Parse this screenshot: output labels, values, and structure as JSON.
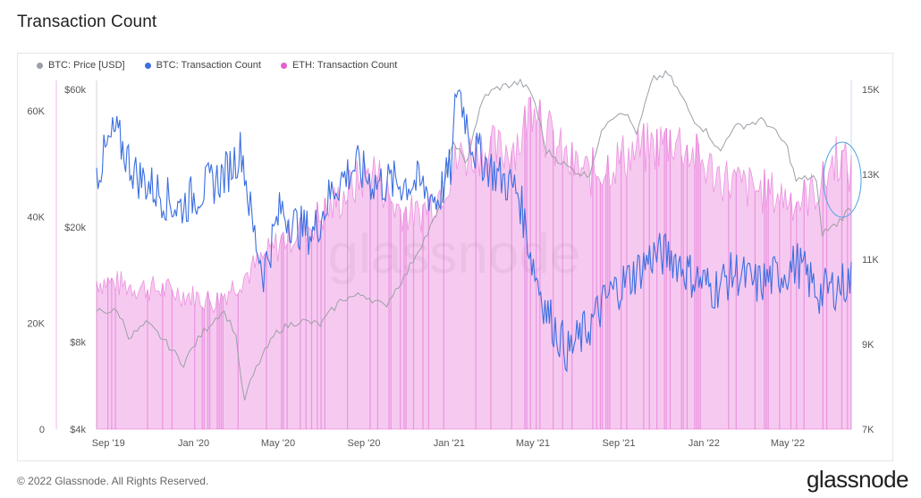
{
  "page": {
    "title": "Transaction Count",
    "copyright": "© 2022 Glassnode. All Rights Reserved.",
    "logo": "glassnode"
  },
  "legend": [
    {
      "label": "BTC: Price [USD]",
      "color": "#9aa0a6"
    },
    {
      "label": "BTC: Transaction Count",
      "color": "#3b6fe0"
    },
    {
      "label": "ETH: Transaction Count",
      "color": "#e35fd1"
    }
  ],
  "chart_data": {
    "type": "line",
    "watermark": "glassnode",
    "x_ticks": [
      "Sep '19",
      "Jan '20",
      "May '20",
      "Sep '20",
      "Jan '21",
      "May '21",
      "Sep '21",
      "Jan '22",
      "May '22"
    ],
    "x_range": [
      "2019-08-15",
      "2022-07-31"
    ],
    "axes": {
      "left_count": {
        "ticks": [
          "0",
          "20K",
          "40K",
          "60K"
        ],
        "ylim": [
          0,
          64000
        ]
      },
      "left_price": {
        "ticks": [
          "$4k",
          "$8k",
          "$20k",
          "$60k"
        ],
        "scale": "log",
        "ylim": [
          4000,
          60000
        ]
      },
      "right_count": {
        "ticks": [
          "7K",
          "9K",
          "11K",
          "13K",
          "15K"
        ],
        "ylim": [
          7000,
          15000
        ]
      }
    },
    "series": [
      {
        "name": "BTC: Price [USD]",
        "axis": "left_price",
        "color": "#9aa0a6",
        "points": [
          [
            "2019-08-15",
            10300
          ],
          [
            "2019-09-15",
            10200
          ],
          [
            "2019-10-01",
            8300
          ],
          [
            "2019-10-26",
            9300
          ],
          [
            "2019-11-20",
            8100
          ],
          [
            "2019-12-17",
            6700
          ],
          [
            "2020-01-15",
            8700
          ],
          [
            "2020-02-12",
            10300
          ],
          [
            "2020-03-01",
            8600
          ],
          [
            "2020-03-12",
            4900
          ],
          [
            "2020-04-01",
            6600
          ],
          [
            "2020-05-01",
            8800
          ],
          [
            "2020-06-01",
            9500
          ],
          [
            "2020-07-01",
            9200
          ],
          [
            "2020-08-01",
            11300
          ],
          [
            "2020-09-01",
            11700
          ],
          [
            "2020-10-01",
            10600
          ],
          [
            "2020-11-01",
            13800
          ],
          [
            "2020-12-01",
            19000
          ],
          [
            "2020-12-20",
            23500
          ],
          [
            "2021-01-08",
            40000
          ],
          [
            "2021-01-25",
            32500
          ],
          [
            "2021-02-21",
            57000
          ],
          [
            "2021-03-13",
            61000
          ],
          [
            "2021-04-14",
            63500
          ],
          [
            "2021-05-01",
            57000
          ],
          [
            "2021-05-19",
            37000
          ],
          [
            "2021-06-22",
            32000
          ],
          [
            "2021-07-20",
            30000
          ],
          [
            "2021-08-15",
            47000
          ],
          [
            "2021-09-07",
            51000
          ],
          [
            "2021-09-28",
            42000
          ],
          [
            "2021-10-20",
            65000
          ],
          [
            "2021-11-10",
            68000
          ],
          [
            "2021-12-15",
            48000
          ],
          [
            "2022-01-10",
            41500
          ],
          [
            "2022-01-24",
            36000
          ],
          [
            "2022-02-10",
            44000
          ],
          [
            "2022-03-28",
            47000
          ],
          [
            "2022-04-30",
            38000
          ],
          [
            "2022-05-12",
            29000
          ],
          [
            "2022-06-10",
            30000
          ],
          [
            "2022-06-18",
            19000
          ],
          [
            "2022-07-10",
            20500
          ],
          [
            "2022-07-31",
            23500
          ]
        ]
      },
      {
        "name": "BTC: Transaction Count",
        "axis": "right_count",
        "color": "#3b6fe0",
        "points": [
          [
            "2019-08-15",
            13000
          ],
          [
            "2019-09-10",
            14000
          ],
          [
            "2019-10-10",
            13000
          ],
          [
            "2019-11-10",
            12600
          ],
          [
            "2019-12-10",
            12200
          ],
          [
            "2020-01-10",
            12600
          ],
          [
            "2020-02-15",
            13000
          ],
          [
            "2020-03-10",
            13600
          ],
          [
            "2020-03-25",
            11800
          ],
          [
            "2020-04-10",
            10700
          ],
          [
            "2020-05-05",
            12200
          ],
          [
            "2020-05-25",
            11800
          ],
          [
            "2020-06-20",
            11600
          ],
          [
            "2020-07-20",
            12700
          ],
          [
            "2020-08-20",
            13200
          ],
          [
            "2020-09-15",
            12800
          ],
          [
            "2020-10-15",
            12800
          ],
          [
            "2020-11-15",
            12800
          ],
          [
            "2020-12-15",
            12400
          ],
          [
            "2021-01-05",
            13200
          ],
          [
            "2021-01-12",
            15200
          ],
          [
            "2021-02-05",
            13600
          ],
          [
            "2021-03-10",
            13000
          ],
          [
            "2021-04-10",
            12600
          ],
          [
            "2021-05-01",
            10900
          ],
          [
            "2021-05-20",
            9800
          ],
          [
            "2021-06-20",
            8800
          ],
          [
            "2021-07-20",
            9400
          ],
          [
            "2021-08-20",
            10200
          ],
          [
            "2021-09-20",
            10600
          ],
          [
            "2021-10-20",
            11100
          ],
          [
            "2021-11-15",
            11100
          ],
          [
            "2021-12-15",
            10600
          ],
          [
            "2022-01-15",
            10300
          ],
          [
            "2022-02-15",
            10700
          ],
          [
            "2022-03-15",
            10400
          ],
          [
            "2022-04-15",
            10600
          ],
          [
            "2022-05-15",
            10900
          ],
          [
            "2022-06-15",
            10200
          ],
          [
            "2022-07-15",
            10400
          ],
          [
            "2022-07-31",
            10500
          ]
        ]
      },
      {
        "name": "ETH: Transaction Count",
        "axis": "left_count",
        "color": "#e35fd1",
        "points": [
          [
            "2019-08-15",
            28000
          ],
          [
            "2019-10-01",
            27000
          ],
          [
            "2019-12-01",
            26000
          ],
          [
            "2020-02-01",
            24000
          ],
          [
            "2020-03-15",
            29000
          ],
          [
            "2020-04-10",
            32000
          ],
          [
            "2020-05-10",
            36000
          ],
          [
            "2020-06-10",
            38000
          ],
          [
            "2020-07-10",
            41000
          ],
          [
            "2020-08-10",
            45000
          ],
          [
            "2020-09-15",
            49000
          ],
          [
            "2020-10-15",
            42000
          ],
          [
            "2020-11-15",
            40000
          ],
          [
            "2020-12-15",
            44000
          ],
          [
            "2021-01-15",
            51000
          ],
          [
            "2021-02-15",
            53000
          ],
          [
            "2021-03-15",
            52000
          ],
          [
            "2021-04-15",
            55000
          ],
          [
            "2021-05-05",
            64000
          ],
          [
            "2021-05-20",
            56000
          ],
          [
            "2021-06-20",
            50000
          ],
          [
            "2021-07-20",
            48000
          ],
          [
            "2021-08-20",
            50000
          ],
          [
            "2021-09-20",
            52000
          ],
          [
            "2021-10-20",
            53000
          ],
          [
            "2021-11-20",
            55000
          ],
          [
            "2021-12-20",
            51000
          ],
          [
            "2022-01-20",
            48000
          ],
          [
            "2022-02-20",
            46000
          ],
          [
            "2022-03-20",
            45000
          ],
          [
            "2022-04-20",
            44000
          ],
          [
            "2022-05-20",
            43000
          ],
          [
            "2022-06-20",
            46000
          ],
          [
            "2022-07-10",
            52000
          ],
          [
            "2022-07-31",
            48000
          ]
        ]
      }
    ]
  }
}
